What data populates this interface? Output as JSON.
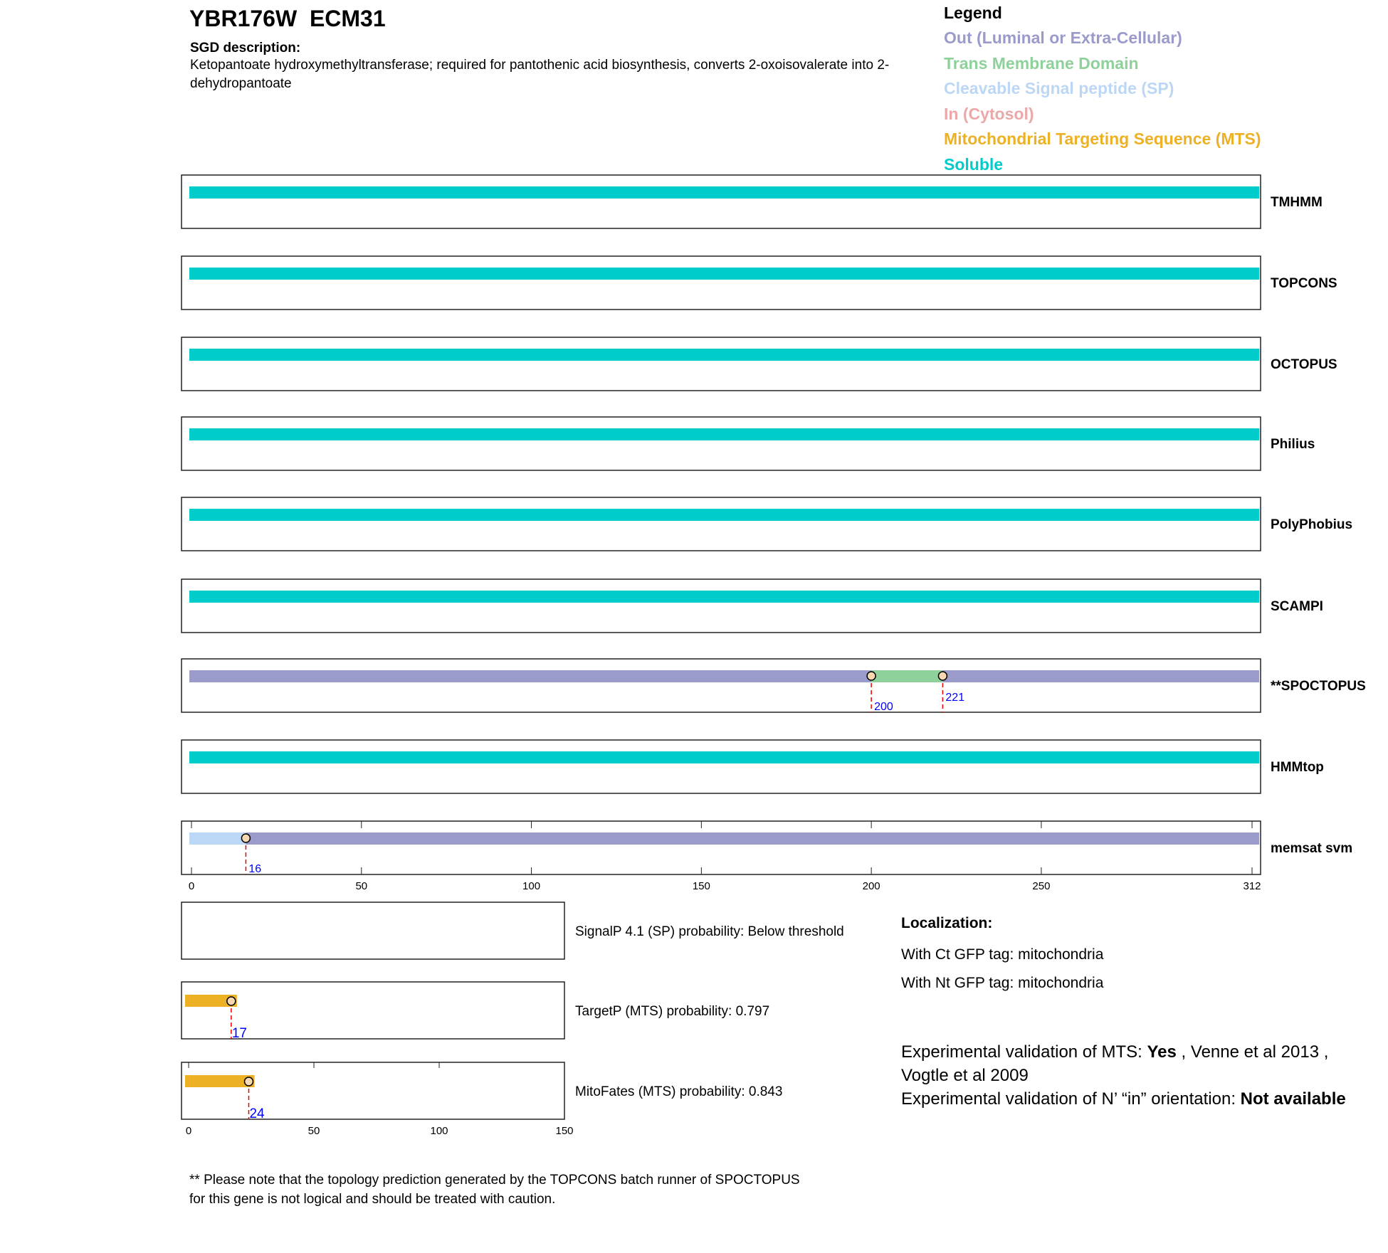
{
  "header": {
    "title": "YBR176W  ECM31",
    "desc_heading": "SGD description:",
    "description": "Ketopantoate hydroxymethyltransferase; required for pantothenic acid biosynthesis, converts 2-oxoisovalerate into 2-dehydropantoate"
  },
  "legend": {
    "heading": "Legend",
    "items": [
      {
        "label": "Out (Luminal or Extra-Cellular)",
        "color": "#9b9bcb"
      },
      {
        "label": "Trans Membrane Domain",
        "color": "#8fd19a"
      },
      {
        "label": "Cleavable Signal peptide (SP)",
        "color": "#bcd7f5"
      },
      {
        "label": "In (Cytosol)",
        "color": "#eaa9a9"
      },
      {
        "label": "Mitochondrial Targeting Sequence (MTS)",
        "color": "#ecb124"
      },
      {
        "label": "Soluble",
        "color": "#00cccc"
      }
    ]
  },
  "chart_data": [
    {
      "type": "topology-tracks",
      "length": 312,
      "xlim": [
        0,
        312
      ],
      "xticks": [
        0,
        50,
        100,
        150,
        200,
        250,
        312
      ],
      "tracks": [
        {
          "name": "TMHMM",
          "segments": [
            {
              "start": 0,
              "end": 312,
              "type": "Soluble"
            }
          ],
          "markers": []
        },
        {
          "name": "TOPCONS",
          "segments": [
            {
              "start": 0,
              "end": 312,
              "type": "Soluble"
            }
          ],
          "markers": []
        },
        {
          "name": "OCTOPUS",
          "segments": [
            {
              "start": 0,
              "end": 312,
              "type": "Soluble"
            }
          ],
          "markers": []
        },
        {
          "name": "Philius",
          "segments": [
            {
              "start": 0,
              "end": 312,
              "type": "Soluble"
            }
          ],
          "markers": []
        },
        {
          "name": "PolyPhobius",
          "segments": [
            {
              "start": 0,
              "end": 312,
              "type": "Soluble"
            }
          ],
          "markers": []
        },
        {
          "name": "SCAMPI",
          "segments": [
            {
              "start": 0,
              "end": 312,
              "type": "Soluble"
            }
          ],
          "markers": []
        },
        {
          "name": "**SPOCTOPUS",
          "segments": [
            {
              "start": 0,
              "end": 200,
              "type": "Out"
            },
            {
              "start": 200,
              "end": 221,
              "type": "TM"
            },
            {
              "start": 221,
              "end": 312,
              "type": "Out"
            }
          ],
          "markers": [
            {
              "pos": 200,
              "label": "200",
              "low": true
            },
            {
              "pos": 221,
              "label": "221",
              "low": false
            }
          ]
        },
        {
          "name": "HMMtop",
          "segments": [
            {
              "start": 0,
              "end": 312,
              "type": "Soluble"
            }
          ],
          "markers": []
        },
        {
          "name": "memsat svm",
          "segments": [
            {
              "start": 0,
              "end": 16,
              "type": "SP"
            },
            {
              "start": 16,
              "end": 312,
              "type": "Out"
            }
          ],
          "markers": [
            {
              "pos": 16,
              "label": "16",
              "low": true
            }
          ]
        }
      ]
    },
    {
      "type": "mts-tracks",
      "xlim": [
        0,
        150
      ],
      "xticks": [
        0,
        50,
        100,
        150
      ],
      "tracks": [
        {
          "name": "SignalP",
          "text": "SignalP 4.1 (SP) probability: Below threshold",
          "segments": [],
          "markers": []
        },
        {
          "name": "TargetP",
          "text": "TargetP (MTS) probability: 0.797",
          "segments": [
            {
              "start": 0,
              "end": 17,
              "type": "MTS"
            }
          ],
          "markers": [
            {
              "pos": 17,
              "label": "17"
            }
          ]
        },
        {
          "name": "MitoFates",
          "text": "MitoFates (MTS) probability: 0.843",
          "segments": [
            {
              "start": 0,
              "end": 24,
              "type": "MTS"
            }
          ],
          "markers": [
            {
              "pos": 24,
              "label": "24"
            }
          ]
        }
      ]
    }
  ],
  "localization": {
    "heading": "Localization:",
    "ct": "With Ct GFP tag: mitochondria",
    "nt": "With Nt GFP tag: mitochondria"
  },
  "validation": {
    "mts_prefix": "Experimental validation of MTS: ",
    "mts_value": "Yes",
    "mts_refs": " , Venne et al 2013 , Vogtle et al 2009",
    "orient_prefix": "Experimental validation of N’ “in” orientation: ",
    "orient_value": "Not available"
  },
  "footnote": "** Please note that the topology prediction generated by the TOPCONS batch runner of SPOCTOPUS for this gene is not logical and should be treated with caution."
}
